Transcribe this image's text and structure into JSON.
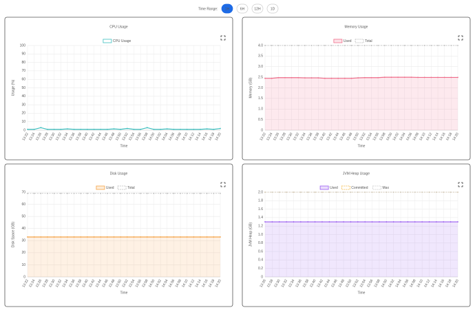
{
  "time_range": {
    "label": "Time Range:",
    "options": [
      "1H",
      "6H",
      "12H",
      "1D"
    ],
    "active": 0
  },
  "chart_data": [
    {
      "type": "line",
      "title": "CPU Usage",
      "ylabel": "Usage (%)",
      "xlabel": "Time",
      "categories": [
        "13:22",
        "13:24",
        "13:26",
        "13:28",
        "13:30",
        "13:32",
        "13:34",
        "13:36",
        "13:38",
        "13:40",
        "13:42",
        "13:44",
        "13:46",
        "13:48",
        "13:50",
        "13:52",
        "13:54",
        "13:56",
        "13:58",
        "14:00",
        "14:02",
        "14:04",
        "14:06",
        "14:08",
        "14:10",
        "14:12",
        "14:14",
        "14:16",
        "14:18",
        "14:20"
      ],
      "series": [
        {
          "name": "CPU Usage",
          "color": "#3bbfbf",
          "fill": false,
          "dash": false,
          "values": [
            1,
            1,
            3,
            1,
            1,
            1,
            1.5,
            1,
            1,
            1,
            1,
            1,
            1,
            1.5,
            1,
            2,
            1,
            1,
            3,
            1,
            1,
            1.5,
            1,
            1,
            1,
            1,
            1,
            1.5,
            1,
            2
          ]
        }
      ],
      "ylim": [
        0,
        100
      ],
      "yticks": [
        0,
        10,
        20,
        30,
        40,
        50,
        60,
        70,
        80,
        90,
        100
      ],
      "grid": true
    },
    {
      "type": "line",
      "title": "Memory Usage",
      "ylabel": "Memory (GB)",
      "xlabel": "Time",
      "categories": [
        "13:22",
        "13:24",
        "13:26",
        "13:28",
        "13:30",
        "13:32",
        "13:34",
        "13:36",
        "13:38",
        "13:40",
        "13:42",
        "13:44",
        "13:46",
        "13:48",
        "13:50",
        "13:52",
        "13:54",
        "13:56",
        "13:58",
        "14:00",
        "14:02",
        "14:04",
        "14:06",
        "14:08",
        "14:10",
        "14:12",
        "14:14",
        "14:16",
        "14:18",
        "14:20"
      ],
      "series": [
        {
          "name": "Used",
          "color": "#f06d8a",
          "fill": true,
          "dash": false,
          "values": [
            2.45,
            2.45,
            2.48,
            2.48,
            2.48,
            2.48,
            2.47,
            2.47,
            2.47,
            2.45,
            2.45,
            2.45,
            2.45,
            2.45,
            2.47,
            2.48,
            2.48,
            2.48,
            2.5,
            2.5,
            2.5,
            2.5,
            2.5,
            2.49,
            2.49,
            2.49,
            2.49,
            2.49,
            2.49,
            2.49
          ]
        },
        {
          "name": "Total",
          "color": "#bbbbbb",
          "fill": false,
          "dash": true,
          "values": [
            4,
            4,
            4,
            4,
            4,
            4,
            4,
            4,
            4,
            4,
            4,
            4,
            4,
            4,
            4,
            4,
            4,
            4,
            4,
            4,
            4,
            4,
            4,
            4,
            4,
            4,
            4,
            4,
            4,
            4
          ]
        }
      ],
      "ylim": [
        0,
        4
      ],
      "yticks": [
        0,
        0.5,
        {
          "value": 1,
          "label": "1.0"
        },
        1.5,
        {
          "value": 2,
          "label": "2.0"
        },
        2.5,
        {
          "value": 3,
          "label": "3.0"
        },
        3.5,
        {
          "value": 4,
          "label": "4.0"
        }
      ],
      "grid": true
    },
    {
      "type": "line",
      "title": "Disk Usage",
      "ylabel": "Disk Space (GB)",
      "xlabel": "Time",
      "categories": [
        "13:22",
        "13:24",
        "13:26",
        "13:28",
        "13:30",
        "13:32",
        "13:34",
        "13:36",
        "13:38",
        "13:40",
        "13:42",
        "13:44",
        "13:46",
        "13:48",
        "13:50",
        "13:52",
        "13:54",
        "13:56",
        "13:58",
        "14:00",
        "14:02",
        "14:04",
        "14:06",
        "14:08",
        "14:10",
        "14:12",
        "14:14",
        "14:16",
        "14:18",
        "14:20"
      ],
      "series": [
        {
          "name": "Used",
          "color": "#f5a347",
          "fill": true,
          "dash": false,
          "values": [
            33,
            33,
            33,
            33,
            33,
            33,
            33,
            33,
            33,
            33,
            33,
            33,
            33,
            33,
            33,
            33,
            33,
            33,
            33,
            33,
            33,
            33,
            33,
            33,
            33,
            33,
            33,
            33,
            33,
            33
          ]
        },
        {
          "name": "Total",
          "color": "#bbbbbb",
          "fill": false,
          "dash": true,
          "values": [
            69,
            69,
            69,
            69,
            69,
            69,
            69,
            69,
            69,
            69,
            69,
            69,
            69,
            69,
            69,
            69,
            69,
            69,
            69,
            69,
            69,
            69,
            69,
            69,
            69,
            69,
            69,
            69,
            69,
            69
          ]
        }
      ],
      "ylim": [
        0,
        70
      ],
      "yticks": [
        0,
        10,
        20,
        30,
        40,
        50,
        60,
        70
      ],
      "grid": true
    },
    {
      "type": "line",
      "title": "JVM Heap Usage",
      "ylabel": "JVM Heap (GB)",
      "xlabel": "Time",
      "categories": [
        "13:26",
        "13:28",
        "13:30",
        "13:32",
        "13:34",
        "13:36",
        "13:38",
        "13:40",
        "13:42",
        "13:44",
        "13:46",
        "13:48",
        "13:50",
        "13:52",
        "13:54",
        "13:56",
        "13:58",
        "14:00",
        "14:02",
        "14:04",
        "14:06",
        "14:08",
        "14:10",
        "14:12",
        "14:14",
        "14:16",
        "14:18",
        "14:20"
      ],
      "series": [
        {
          "name": "Used",
          "color": "#9a5cf0",
          "fill": true,
          "dash": false,
          "values": [
            1.3,
            1.3,
            1.3,
            1.3,
            1.3,
            1.3,
            1.3,
            1.3,
            1.3,
            1.3,
            1.3,
            1.3,
            1.3,
            1.3,
            1.3,
            1.3,
            1.3,
            1.3,
            1.3,
            1.3,
            1.3,
            1.3,
            1.3,
            1.3,
            1.3,
            1.3,
            1.3,
            1.3
          ]
        },
        {
          "name": "Committed",
          "color": "#f5b942",
          "fill": false,
          "dash": true,
          "values": [
            2,
            2,
            2,
            2,
            2,
            2,
            2,
            2,
            2,
            2,
            2,
            2,
            2,
            2,
            2,
            2,
            2,
            2,
            2,
            2,
            2,
            2,
            2,
            2,
            2,
            2,
            2,
            2
          ]
        },
        {
          "name": "Max",
          "color": "#cccccc",
          "fill": false,
          "dash": true,
          "values": [
            2,
            2,
            2,
            2,
            2,
            2,
            2,
            2,
            2,
            2,
            2,
            2,
            2,
            2,
            2,
            2,
            2,
            2,
            2,
            2,
            2,
            2,
            2,
            2,
            2,
            2,
            2,
            2
          ]
        }
      ],
      "ylim": [
        0,
        2
      ],
      "yticks": [
        0,
        0.2,
        0.4,
        0.6,
        0.8,
        {
          "value": 1,
          "label": "1.0"
        },
        1.2,
        1.4,
        1.6,
        1.8,
        {
          "value": 2,
          "label": "2.0"
        }
      ],
      "grid": true
    }
  ]
}
